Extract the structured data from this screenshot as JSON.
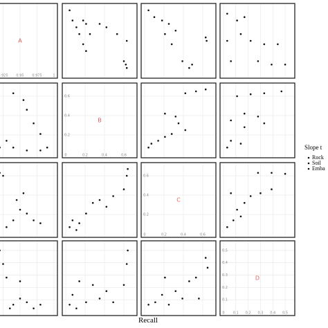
{
  "chart_data": {
    "type": "scatter-matrix",
    "xlabel": "Recall",
    "legend_title": "Slope t",
    "legend": [
      "Rock",
      "Soil",
      "Emba"
    ],
    "color": "#111111",
    "grid": true,
    "panels": [
      {
        "label": "A",
        "xlim": [
          0.9,
          1.0
        ],
        "ylim": [
          0.9,
          1.0
        ],
        "xticks": [
          0.925,
          0.95,
          0.975,
          1
        ],
        "yticks": []
      },
      {
        "xlim": [
          0,
          0.7
        ],
        "ylim": [
          0.9,
          1.0
        ],
        "x": [
          0.04,
          0.07,
          0.11,
          0.14,
          0.18,
          0.21,
          0.25,
          0.35,
          0.42,
          0.53,
          0.63,
          0.6,
          0.63,
          0.62,
          0.21,
          0.18
        ],
        "y": [
          0.995,
          0.98,
          0.97,
          0.96,
          0.945,
          0.935,
          0.96,
          0.975,
          0.97,
          0.96,
          0.95,
          0.92,
          0.91,
          0.915,
          0.975,
          0.98
        ]
      },
      {
        "xlim": [
          0,
          0.7
        ],
        "ylim": [
          0.9,
          1.0
        ],
        "x": [
          0.04,
          0.1,
          0.18,
          0.25,
          0.21,
          0.28,
          0.32,
          0.63,
          0.64,
          0.39,
          0.46,
          0.49
        ],
        "y": [
          0.995,
          0.985,
          0.98,
          0.975,
          0.96,
          0.945,
          0.965,
          0.955,
          0.95,
          0.92,
          0.91,
          0.915
        ]
      },
      {
        "xlim": [
          0,
          0.55
        ],
        "ylim": [
          0.9,
          1.0
        ],
        "x": [
          0.03,
          0.03,
          0.06,
          0.11,
          0.17,
          0.22,
          0.33,
          0.44,
          0.28,
          0.39,
          0.5,
          0.14
        ],
        "y": [
          0.99,
          0.95,
          0.92,
          0.98,
          0.985,
          0.95,
          0.945,
          0.945,
          0.92,
          0.915,
          0.915,
          0.96
        ]
      },
      {
        "xlim": [
          0.9,
          1.0
        ],
        "ylim": [
          0,
          0.7
        ],
        "x": [
          0.905,
          0.92,
          0.94,
          0.96,
          0.98,
          0.955,
          0.96,
          0.97,
          0.98,
          0.99,
          0.94,
          0.93
        ],
        "y": [
          0.11,
          0.07,
          0.07,
          0.04,
          0.04,
          0.56,
          0.46,
          0.32,
          0.21,
          0.07,
          0.63,
          0.14
        ]
      },
      {
        "label": "B",
        "xlim": [
          0,
          0.7
        ],
        "ylim": [
          0,
          0.7
        ],
        "xticks": [
          0,
          0.2,
          0.4,
          0.6
        ],
        "yticks": [
          0.2,
          0.4,
          0.6
        ]
      },
      {
        "xlim": [
          0,
          0.7
        ],
        "ylim": [
          0,
          0.7
        ],
        "x": [
          0.04,
          0.07,
          0.14,
          0.21,
          0.28,
          0.35,
          0.21,
          0.32,
          0.42,
          0.53,
          0.63,
          0.42
        ],
        "y": [
          0.07,
          0.11,
          0.14,
          0.18,
          0.21,
          0.32,
          0.42,
          0.39,
          0.63,
          0.65,
          0.67,
          0.25
        ]
      },
      {
        "xlim": [
          0,
          0.55
        ],
        "ylim": [
          0,
          0.7
        ],
        "x": [
          0.03,
          0.06,
          0.06,
          0.11,
          0.22,
          0.33,
          0.47,
          0.17,
          0.17,
          0.28,
          0.33,
          0.14
        ],
        "y": [
          0.07,
          0.14,
          0.35,
          0.6,
          0.62,
          0.63,
          0.65,
          0.42,
          0.28,
          0.39,
          0.32,
          0.11
        ]
      },
      {
        "xlim": [
          0.9,
          1.0
        ],
        "ylim": [
          0,
          0.7
        ],
        "x": [
          0.92,
          0.925,
          0.91,
          0.91,
          0.93,
          0.94,
          0.945,
          0.95,
          0.96,
          0.97,
          0.98,
          0.955
        ],
        "y": [
          0.63,
          0.6,
          0.28,
          0.11,
          0.07,
          0.14,
          0.35,
          0.25,
          0.21,
          0.14,
          0.11,
          0.42
        ]
      },
      {
        "xlim": [
          0,
          0.7
        ],
        "ylim": [
          0,
          0.7
        ],
        "x": [
          0.04,
          0.07,
          0.14,
          0.21,
          0.28,
          0.35,
          0.42,
          0.49,
          0.6,
          0.63,
          0.64,
          0.11
        ],
        "y": [
          0.07,
          0.14,
          0.11,
          0.21,
          0.32,
          0.35,
          0.28,
          0.39,
          0.46,
          0.6,
          0.67,
          0.04
        ]
      },
      {
        "label": "C",
        "xlim": [
          0,
          0.7
        ],
        "ylim": [
          0,
          0.7
        ],
        "xticks": [
          0,
          0.2,
          0.4,
          0.6
        ],
        "yticks": [
          0.2,
          0.4,
          0.6
        ]
      },
      {
        "xlim": [
          0,
          0.55
        ],
        "ylim": [
          0,
          0.7
        ],
        "x": [
          0.03,
          0.08,
          0.11,
          0.17,
          0.22,
          0.3,
          0.39,
          0.28,
          0.39,
          0.5,
          0.06,
          0.14
        ],
        "y": [
          0.07,
          0.14,
          0.25,
          0.32,
          0.39,
          0.42,
          0.46,
          0.63,
          0.63,
          0.62,
          0.42,
          0.18
        ]
      },
      {
        "xlim": [
          0.9,
          1.0
        ],
        "ylim": [
          0,
          0.55
        ],
        "x": [
          0.92,
          0.925,
          0.93,
          0.91,
          0.91,
          0.94,
          0.95,
          0.96,
          0.98,
          0.95,
          0.935,
          0.97
        ],
        "y": [
          0.5,
          0.39,
          0.28,
          0.17,
          0.06,
          0.06,
          0.11,
          0.08,
          0.06,
          0.25,
          0.03,
          0.03
        ]
      },
      {
        "xlim": [
          0,
          0.7
        ],
        "ylim": [
          0,
          0.55
        ],
        "x": [
          0.04,
          0.07,
          0.11,
          0.21,
          0.28,
          0.35,
          0.42,
          0.49,
          0.6,
          0.63,
          0.64,
          0.14
        ],
        "y": [
          0.06,
          0.14,
          0.03,
          0.08,
          0.22,
          0.11,
          0.17,
          0.08,
          0.22,
          0.39,
          0.5,
          0.25
        ]
      },
      {
        "xlim": [
          0,
          0.7
        ],
        "ylim": [
          0,
          0.55
        ],
        "x": [
          0.04,
          0.11,
          0.18,
          0.25,
          0.32,
          0.39,
          0.46,
          0.53,
          0.56,
          0.63,
          0.65,
          0.21
        ],
        "y": [
          0.06,
          0.08,
          0.14,
          0.06,
          0.17,
          0.11,
          0.25,
          0.28,
          0.11,
          0.44,
          0.36,
          0.28
        ]
      },
      {
        "label": "D",
        "xlim": [
          0,
          0.55
        ],
        "ylim": [
          0,
          0.55
        ],
        "xticks": [
          0,
          0.1,
          0.2,
          0.3,
          0.4,
          0.5
        ],
        "yticks": [
          0.1,
          0.2,
          0.3,
          0.4,
          0.5
        ]
      }
    ]
  }
}
